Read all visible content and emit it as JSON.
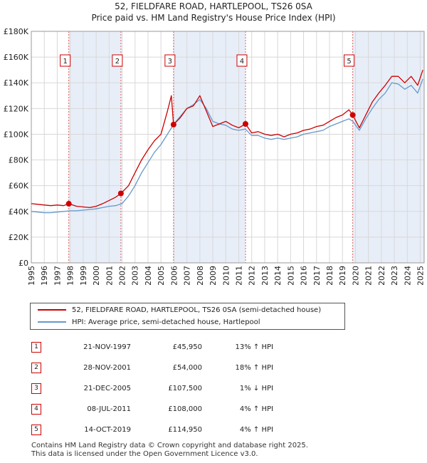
{
  "header": {
    "title_line1": "52, FIELDFARE ROAD, HARTLEPOOL, TS26 0SA",
    "title_line2": "Price paid vs. HM Land Registry's House Price Index (HPI)"
  },
  "chart_data": {
    "type": "line",
    "title": "52, FIELDFARE ROAD, HARTLEPOOL, TS26 0SA — Price paid vs. HM Land Registry's House Price Index (HPI)",
    "xlim": [
      1995,
      2025.3
    ],
    "ylim": [
      0,
      180000
    ],
    "y_ticks": [
      0,
      20000,
      40000,
      60000,
      80000,
      100000,
      120000,
      140000,
      160000,
      180000
    ],
    "y_tick_labels": [
      "£0",
      "£20K",
      "£40K",
      "£60K",
      "£80K",
      "£100K",
      "£120K",
      "£140K",
      "£160K",
      "£180K"
    ],
    "x_ticks": [
      1995,
      1996,
      1997,
      1998,
      1999,
      2000,
      2001,
      2002,
      2003,
      2004,
      2005,
      2006,
      2007,
      2008,
      2009,
      2010,
      2011,
      2012,
      2013,
      2014,
      2015,
      2016,
      2017,
      2018,
      2019,
      2020,
      2021,
      2022,
      2023,
      2024,
      2025
    ],
    "x_tick_labels": [
      "1995",
      "1996",
      "1997",
      "1998",
      "1999",
      "2000",
      "2001",
      "2002",
      "2003",
      "2004",
      "2005",
      "2006",
      "2007",
      "2008",
      "2009",
      "2010",
      "2011",
      "2012",
      "2013",
      "2014",
      "2015",
      "2016",
      "2017",
      "2018",
      "2019",
      "2020",
      "2021",
      "2022",
      "2023",
      "2024",
      "2025"
    ],
    "grid": true,
    "shaded_periods": [
      [
        1997.89,
        2001.91
      ],
      [
        2005.97,
        2011.52
      ],
      [
        2019.79,
        2025.3
      ]
    ],
    "series": [
      {
        "name": "52, FIELDFARE ROAD, HARTLEPOOL, TS26 0SA (semi-detached house)",
        "color": "#cc0000",
        "x": [
          1995.0,
          1995.5,
          1996.0,
          1996.5,
          1997.0,
          1997.5,
          1997.89,
          1998.5,
          1999.0,
          1999.5,
          2000.0,
          2000.5,
          2001.0,
          2001.5,
          2001.91,
          2002.5,
          2003.0,
          2003.5,
          2004.0,
          2004.5,
          2005.0,
          2005.5,
          2005.8,
          2005.97,
          2006.5,
          2007.0,
          2007.5,
          2008.0,
          2008.5,
          2009.0,
          2009.5,
          2010.0,
          2010.5,
          2011.0,
          2011.52,
          2012.0,
          2012.5,
          2013.0,
          2013.5,
          2014.0,
          2014.5,
          2015.0,
          2015.5,
          2016.0,
          2016.5,
          2017.0,
          2017.5,
          2018.0,
          2018.5,
          2019.0,
          2019.5,
          2019.79,
          2020.3,
          2020.8,
          2021.3,
          2021.8,
          2022.3,
          2022.8,
          2023.3,
          2023.8,
          2024.3,
          2024.8,
          2025.2
        ],
        "values": [
          46000,
          45500,
          45000,
          44500,
          45000,
          44500,
          45950,
          44000,
          43500,
          43000,
          44000,
          46000,
          48500,
          51000,
          54000,
          60000,
          70000,
          80000,
          88000,
          95000,
          100000,
          118000,
          130000,
          107500,
          113000,
          120000,
          122000,
          130000,
          118000,
          106000,
          108000,
          110000,
          107000,
          105000,
          108000,
          101000,
          102000,
          100000,
          99000,
          100000,
          98000,
          100000,
          101000,
          103000,
          104000,
          106000,
          107000,
          110000,
          113000,
          115000,
          119000,
          114950,
          105000,
          115000,
          125000,
          132000,
          138000,
          145000,
          145000,
          140000,
          145000,
          138000,
          150000
        ]
      },
      {
        "name": "HPI: Average price, semi-detached house, Hartlepool",
        "color": "#6699cc",
        "x": [
          1995.0,
          1995.5,
          1996.0,
          1996.5,
          1997.0,
          1997.5,
          1998.0,
          1998.5,
          1999.0,
          1999.5,
          2000.0,
          2000.5,
          2001.0,
          2001.5,
          2002.0,
          2002.5,
          2003.0,
          2003.5,
          2004.0,
          2004.5,
          2005.0,
          2005.5,
          2006.0,
          2006.5,
          2007.0,
          2007.5,
          2008.0,
          2008.5,
          2009.0,
          2009.5,
          2010.0,
          2010.5,
          2011.0,
          2011.5,
          2012.0,
          2012.5,
          2013.0,
          2013.5,
          2014.0,
          2014.5,
          2015.0,
          2015.5,
          2016.0,
          2016.5,
          2017.0,
          2017.5,
          2018.0,
          2018.5,
          2019.0,
          2019.5,
          2019.8,
          2020.3,
          2020.8,
          2021.3,
          2021.8,
          2022.3,
          2022.8,
          2023.3,
          2023.8,
          2024.3,
          2024.8,
          2025.2
        ],
        "values": [
          40000,
          39500,
          39000,
          39000,
          39500,
          40000,
          40500,
          40500,
          41000,
          41500,
          42000,
          43000,
          44000,
          44500,
          46000,
          52000,
          60000,
          70000,
          78000,
          86000,
          92000,
          100000,
          108000,
          114000,
          120000,
          123000,
          127000,
          120000,
          110000,
          108000,
          107000,
          104000,
          103000,
          104000,
          99000,
          99000,
          97000,
          96000,
          97000,
          96000,
          97000,
          98000,
          100000,
          101000,
          102000,
          103000,
          106000,
          108000,
          110000,
          112000,
          110000,
          103000,
          112000,
          120000,
          127000,
          132000,
          140000,
          139000,
          135000,
          138000,
          132000,
          143000
        ]
      }
    ],
    "sales": [
      {
        "label": "1",
        "x": 1997.89,
        "value": 45950
      },
      {
        "label": "2",
        "x": 2001.91,
        "value": 54000
      },
      {
        "label": "3",
        "x": 2005.97,
        "value": 107500
      },
      {
        "label": "4",
        "x": 2011.52,
        "value": 108000
      },
      {
        "label": "5",
        "x": 2019.79,
        "value": 114950
      }
    ]
  },
  "legend": {
    "property_label": "52, FIELDFARE ROAD, HARTLEPOOL, TS26 0SA (semi-detached house)",
    "hpi_label": "HPI: Average price, semi-detached house, Hartlepool"
  },
  "sales_table": [
    {
      "num": "1",
      "date": "21-NOV-1997",
      "price": "£45,950",
      "hpi": "13% ↑ HPI"
    },
    {
      "num": "2",
      "date": "28-NOV-2001",
      "price": "£54,000",
      "hpi": "18% ↑ HPI"
    },
    {
      "num": "3",
      "date": "21-DEC-2005",
      "price": "£107,500",
      "hpi": "1% ↓ HPI"
    },
    {
      "num": "4",
      "date": "08-JUL-2011",
      "price": "£108,000",
      "hpi": "4% ↑ HPI"
    },
    {
      "num": "5",
      "date": "14-OCT-2019",
      "price": "£114,950",
      "hpi": "4% ↑ HPI"
    }
  ],
  "footer": {
    "line1": "Contains HM Land Registry data © Crown copyright and database right 2025.",
    "line2": "This data is licensed under the Open Government Licence v3.0."
  }
}
